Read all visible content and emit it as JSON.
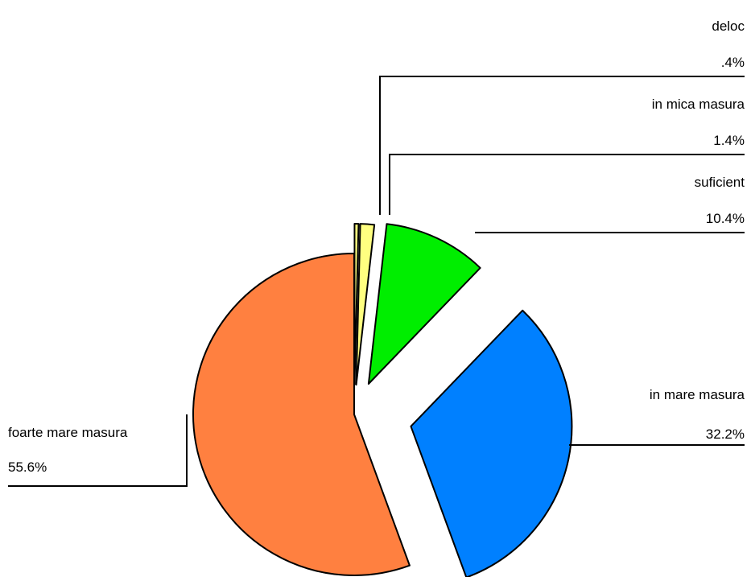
{
  "chart_data": {
    "type": "pie",
    "title": "",
    "exploded": true,
    "legend": "none",
    "slices": [
      {
        "label": "deloc",
        "value": 0.4,
        "value_label": ".4%",
        "color": "#ffff80"
      },
      {
        "label": "in mica masura",
        "value": 1.4,
        "value_label": "1.4%",
        "color": "#ffff80"
      },
      {
        "label": "suficient",
        "value": 10.4,
        "value_label": "10.4%",
        "color": "#00ee00"
      },
      {
        "label": "in mare masura",
        "value": 32.2,
        "value_label": "32.2%",
        "color": "#0080ff"
      },
      {
        "label": "foarte mare masura",
        "value": 55.6,
        "value_label": "55.6%",
        "color": "#ff8040"
      }
    ]
  }
}
